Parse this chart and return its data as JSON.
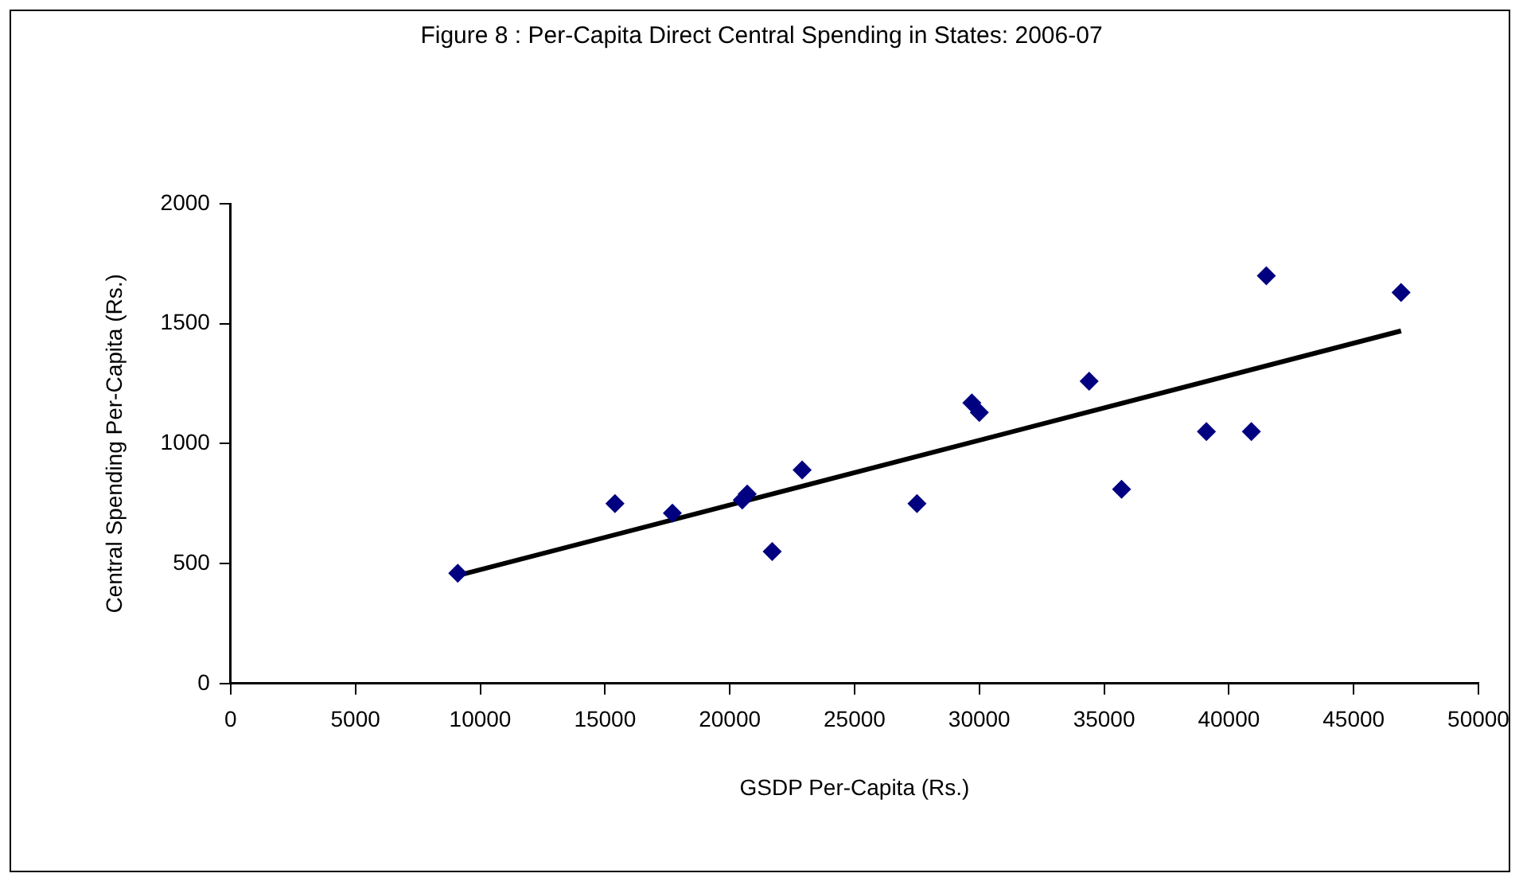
{
  "chart_data": {
    "type": "scatter",
    "title": "Figure 8 : Per-Capita Direct Central Spending in States: 2006-07",
    "xlabel": "GSDP Per-Capita (Rs.)",
    "ylabel": "Central Spending Per-Capita (Rs.)",
    "xlim": [
      0,
      50000
    ],
    "xticks": [
      0,
      5000,
      10000,
      15000,
      20000,
      25000,
      30000,
      35000,
      40000,
      45000,
      50000
    ],
    "ylim": [
      0,
      2000
    ],
    "yticks": [
      0,
      500,
      1000,
      1500,
      2000
    ],
    "grid": false,
    "legend": false,
    "series": [
      {
        "color": "#000080",
        "marker": "diamond",
        "x": [
          9100,
          15400,
          17700,
          20500,
          20700,
          21700,
          22900,
          27500,
          29700,
          30000,
          34400,
          35700,
          39100,
          40900,
          41500,
          46900
        ],
        "values": [
          460,
          750,
          710,
          765,
          790,
          550,
          890,
          750,
          1170,
          1130,
          1260,
          810,
          1050,
          1050,
          1700,
          1630
        ]
      },
      {
        "type": "line",
        "color": "#000000",
        "marker": "none",
        "x": [
          9100,
          46900
        ],
        "values": [
          450,
          1470
        ]
      }
    ]
  }
}
